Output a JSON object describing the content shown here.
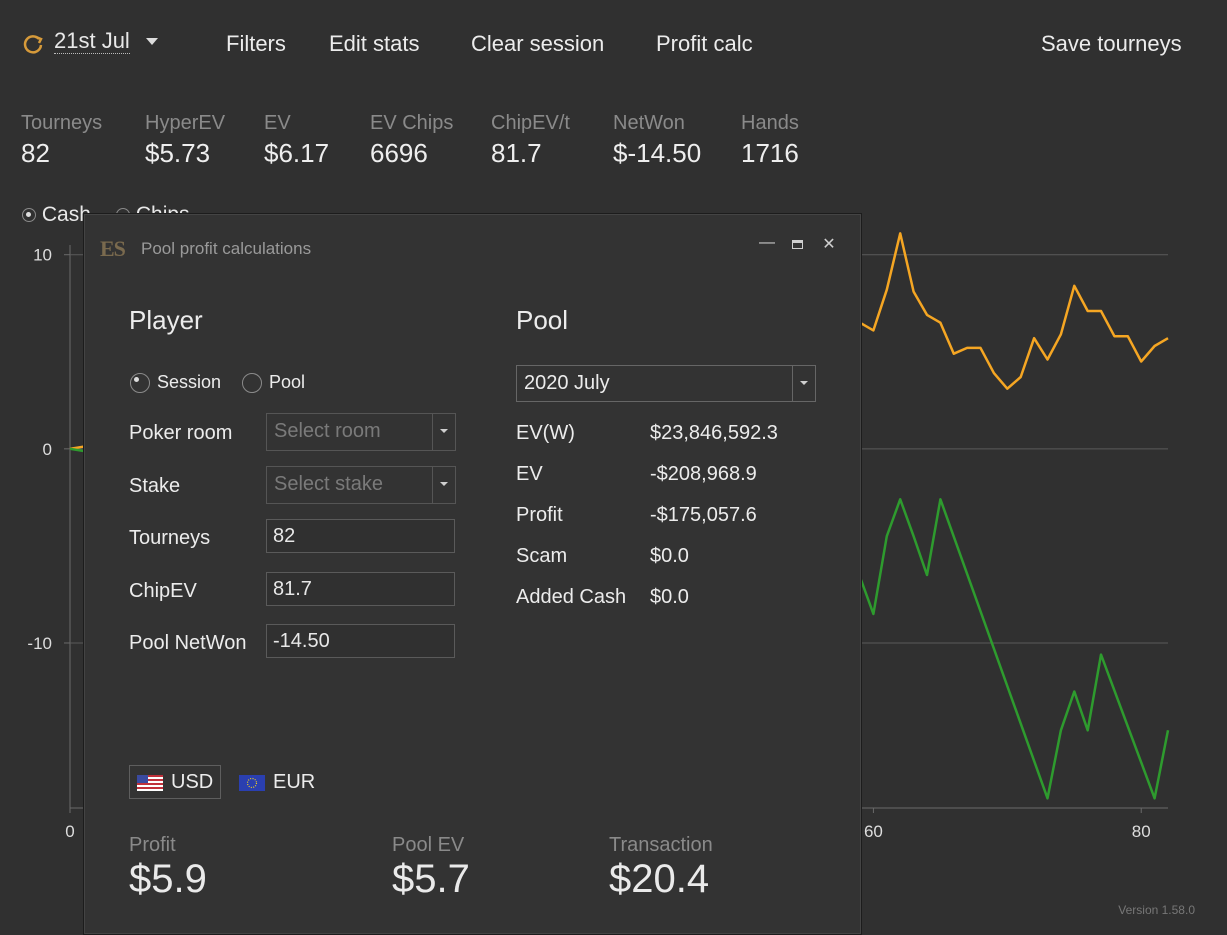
{
  "toolbar": {
    "date": "21st Jul",
    "filters": "Filters",
    "edit_stats": "Edit stats",
    "clear_session": "Clear session",
    "profit_calc": "Profit calc",
    "save_tourneys": "Save tourneys"
  },
  "stats": [
    {
      "label": "Tourneys",
      "value": "82"
    },
    {
      "label": "HyperEV",
      "value": "$5.73"
    },
    {
      "label": "EV",
      "value": "$6.17"
    },
    {
      "label": "EV Chips",
      "value": "6696"
    },
    {
      "label": "ChipEV/t",
      "value": "81.7"
    },
    {
      "label": "NetWon",
      "value": "$-14.50"
    },
    {
      "label": "Hands",
      "value": "1716"
    }
  ],
  "chart_mode": {
    "cash": "Cash",
    "chips": "Chips",
    "selected": "Cash"
  },
  "chart_data": {
    "type": "line",
    "xlim": [
      0,
      82
    ],
    "ylim": [
      -18.5,
      10.5
    ],
    "x_ticks": [
      "0",
      "60",
      "80"
    ],
    "y_ticks": [
      "10",
      "0",
      "-10"
    ],
    "grid": true,
    "series": [
      {
        "color": "#f5a623",
        "points": [
          [
            0,
            0
          ],
          [
            59,
            6.5
          ],
          [
            60,
            6.1
          ],
          [
            61,
            8.2
          ],
          [
            62,
            11.1
          ],
          [
            63,
            8.1
          ],
          [
            64,
            6.9
          ],
          [
            65,
            6.5
          ],
          [
            66,
            4.9
          ],
          [
            67,
            5.2
          ],
          [
            68,
            5.2
          ],
          [
            69,
            3.9
          ],
          [
            70,
            3.1
          ],
          [
            71,
            3.7
          ],
          [
            72,
            5.7
          ],
          [
            73,
            4.6
          ],
          [
            74,
            5.9
          ],
          [
            75,
            8.4
          ],
          [
            76,
            7.1
          ],
          [
            77,
            7.1
          ],
          [
            78,
            5.8
          ],
          [
            79,
            5.8
          ],
          [
            80,
            4.5
          ],
          [
            81,
            5.3
          ],
          [
            82,
            5.7
          ]
        ]
      },
      {
        "color": "#2e9b2e",
        "points": [
          [
            0,
            0
          ],
          [
            59,
            -6.6
          ],
          [
            60,
            -8.5
          ],
          [
            61,
            -4.5
          ],
          [
            62,
            -2.6
          ],
          [
            63,
            -4.5
          ],
          [
            64,
            -6.5
          ],
          [
            65,
            -2.6
          ],
          [
            73,
            -18.0
          ],
          [
            74,
            -14.5
          ],
          [
            75,
            -12.5
          ],
          [
            76,
            -14.5
          ],
          [
            77,
            -10.6
          ],
          [
            81,
            -18.0
          ],
          [
            82,
            -14.5
          ]
        ]
      }
    ]
  },
  "version": "Version 1.58.0",
  "dialog": {
    "title": "Pool profit calculations",
    "logo": "ES",
    "player": {
      "heading": "Player",
      "radio_session": "Session",
      "radio_pool": "Pool",
      "selected": "Session",
      "poker_room_label": "Poker room",
      "poker_room_placeholder": "Select room",
      "stake_label": "Stake",
      "stake_placeholder": "Select stake",
      "tourneys_label": "Tourneys",
      "tourneys_value": "82",
      "chipev_label": "ChipEV",
      "chipev_value": "81.7",
      "pool_netwon_label": "Pool NetWon",
      "pool_netwon_value": "-14.50"
    },
    "pool": {
      "heading": "Pool",
      "period": "2020 July",
      "rows": [
        {
          "label": "EV(W)",
          "value": "$23,846,592.3"
        },
        {
          "label": "EV",
          "value": "-$208,968.9"
        },
        {
          "label": "Profit",
          "value": "-$175,057.6"
        },
        {
          "label": "Scam",
          "value": "$0.0"
        },
        {
          "label": "Added Cash",
          "value": "$0.0"
        }
      ]
    },
    "currency": {
      "usd": "USD",
      "eur": "EUR",
      "selected": "USD"
    },
    "bottom": [
      {
        "label": "Profit",
        "value": "$5.9"
      },
      {
        "label": "Pool EV",
        "value": "$5.7"
      },
      {
        "label": "Transaction",
        "value": "$20.4"
      }
    ]
  }
}
